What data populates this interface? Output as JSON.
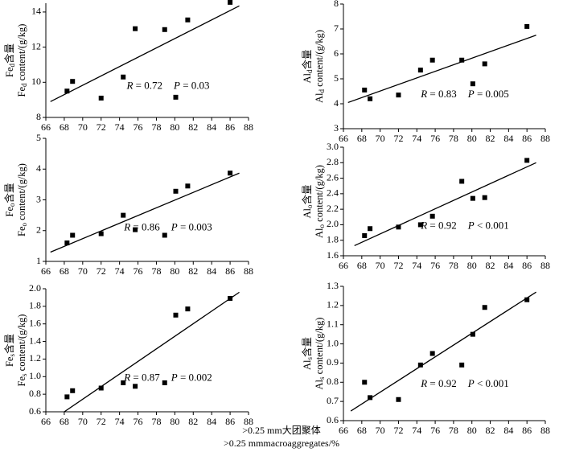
{
  "chart_data": [
    {
      "type": "scatter",
      "ylabel": {
        "element": "Fe",
        "subscript": "d",
        "cn": "含量",
        "en": " content/(g/kg)"
      },
      "x": [
        68.3,
        68.9,
        72,
        74.4,
        75.7,
        78.9,
        80.1,
        81.4,
        86
      ],
      "y": [
        9.5,
        10.05,
        9.1,
        10.3,
        13.05,
        13.0,
        9.15,
        13.55,
        14.55
      ],
      "xlim": [
        66,
        88
      ],
      "xticks": [
        66,
        68,
        70,
        72,
        74,
        76,
        78,
        80,
        82,
        84,
        86,
        88
      ],
      "ylim": [
        8,
        14.5
      ],
      "yticks": [
        8,
        10,
        12,
        14
      ],
      "trendline": {
        "x": [
          66.5,
          87
        ],
        "y": [
          8.9,
          14.35
        ]
      },
      "annotation": [
        {
          "var": "R",
          "text": " = 0.72"
        },
        {
          "var": "P",
          "text": " = 0.03"
        }
      ]
    },
    {
      "type": "scatter",
      "ylabel": {
        "element": "Al",
        "subscript": "d",
        "cn": "含量",
        "en": " content/(g/kg)"
      },
      "x": [
        68.3,
        68.9,
        72,
        74.4,
        75.7,
        78.9,
        80.1,
        81.4,
        86
      ],
      "y": [
        4.55,
        4.2,
        4.35,
        5.35,
        5.75,
        5.75,
        4.8,
        5.6,
        7.1
      ],
      "xlim": [
        66,
        88
      ],
      "xticks": [
        66,
        68,
        70,
        72,
        74,
        76,
        78,
        80,
        82,
        84,
        86,
        88
      ],
      "ylim": [
        3,
        8
      ],
      "yticks": [
        3,
        4,
        5,
        6,
        7,
        8
      ],
      "trendline": {
        "x": [
          66.5,
          87
        ],
        "y": [
          4.05,
          6.75
        ]
      },
      "annotation": [
        {
          "var": "R",
          "text": " = 0.83"
        },
        {
          "var": "P",
          "text": " = 0.005"
        }
      ]
    },
    {
      "type": "scatter",
      "ylabel": {
        "element": "Fe",
        "subscript": "o",
        "cn": "含量",
        "en": " content/(g/kg)"
      },
      "x": [
        68.3,
        68.9,
        72,
        74.4,
        75.7,
        78.9,
        80.1,
        81.4,
        86
      ],
      "y": [
        1.6,
        1.85,
        1.9,
        2.5,
        2.03,
        1.85,
        3.28,
        3.45,
        3.87
      ],
      "xlim": [
        66,
        88
      ],
      "xticks": [
        66,
        68,
        70,
        72,
        74,
        76,
        78,
        80,
        82,
        84,
        86,
        88
      ],
      "ylim": [
        1,
        5
      ],
      "yticks": [
        1,
        2,
        3,
        4,
        5
      ],
      "trendline": {
        "x": [
          66.5,
          87
        ],
        "y": [
          1.3,
          3.87
        ]
      },
      "annotation": [
        {
          "var": "R",
          "text": " = 0.86"
        },
        {
          "var": "P",
          "text": " = 0.003"
        }
      ]
    },
    {
      "type": "scatter",
      "ylabel": {
        "element": "Al",
        "subscript": "o",
        "cn": "含量",
        "en": " content/(g/kg)"
      },
      "x": [
        68.3,
        68.9,
        72,
        74.4,
        75.7,
        78.9,
        80.1,
        81.4,
        86
      ],
      "y": [
        1.86,
        1.95,
        1.97,
        2.0,
        2.11,
        2.56,
        2.34,
        2.35,
        2.83
      ],
      "xlim": [
        66,
        88
      ],
      "xticks": [
        66,
        68,
        70,
        72,
        74,
        76,
        78,
        80,
        82,
        84,
        86,
        88
      ],
      "ylim": [
        1.6,
        3.0
      ],
      "yticks": [
        1.6,
        1.8,
        {
          "value": 2.0,
          "label": "2.0"
        },
        2.2,
        2.4,
        2.6,
        2.8,
        {
          "value": 3.0,
          "label": "3.0"
        }
      ],
      "trendline": {
        "x": [
          67.2,
          87
        ],
        "y": [
          1.73,
          2.8
        ]
      },
      "annotation": [
        {
          "var": "R",
          "text": " = 0.92"
        },
        {
          "var": "P",
          "text": " < 0.001"
        }
      ]
    },
    {
      "type": "scatter",
      "ylabel": {
        "element": "Fe",
        "subscript": "s",
        "cn": "含量",
        "en": " content/(g/kg)"
      },
      "x": [
        68.3,
        68.9,
        72,
        74.4,
        75.7,
        78.9,
        80.1,
        81.4,
        86
      ],
      "y": [
        0.77,
        0.84,
        0.87,
        0.93,
        0.89,
        0.93,
        1.7,
        1.77,
        1.89
      ],
      "xlim": [
        66,
        88
      ],
      "xticks": [
        66,
        68,
        70,
        72,
        74,
        76,
        78,
        80,
        82,
        84,
        86,
        88
      ],
      "ylim": [
        0.6,
        2.0
      ],
      "yticks": [
        0.6,
        0.8,
        {
          "value": 1.0,
          "label": "1.0"
        },
        1.2,
        1.4,
        1.6,
        1.8,
        {
          "value": 2.0,
          "label": "2.0"
        }
      ],
      "trendline": {
        "x": [
          68,
          87
        ],
        "y": [
          0.6,
          1.96
        ]
      },
      "annotation": [
        {
          "var": "R",
          "text": " = 0.87"
        },
        {
          "var": "P",
          "text": " = 0.002"
        }
      ]
    },
    {
      "type": "scatter",
      "ylabel": {
        "element": "Al",
        "subscript": "s",
        "cn": "含量",
        "en": " content/(g/kg)"
      },
      "x": [
        68.3,
        68.9,
        72,
        74.4,
        75.7,
        78.9,
        80.1,
        81.4,
        86
      ],
      "y": [
        0.8,
        0.72,
        0.71,
        0.89,
        0.95,
        0.89,
        1.05,
        1.19,
        1.23
      ],
      "xlim": [
        66,
        88
      ],
      "xticks": [
        66,
        68,
        70,
        72,
        74,
        76,
        78,
        80,
        82,
        84,
        86,
        88
      ],
      "ylim": [
        0.6,
        1.3
      ],
      "yticks": [
        0.6,
        0.7,
        0.8,
        0.9,
        {
          "value": 1.0,
          "label": "1.0"
        },
        1.1,
        1.2,
        1.3
      ],
      "trendline": {
        "x": [
          66.8,
          87
        ],
        "y": [
          0.65,
          1.27
        ]
      },
      "annotation": [
        {
          "var": "R",
          "text": " = 0.92"
        },
        {
          "var": "P",
          "text": " < 0.001"
        }
      ]
    }
  ],
  "xlabel_cn": ">0.25 mm大团聚体",
  "xlabel_en": ">0.25 mmmacroaggregates/%"
}
